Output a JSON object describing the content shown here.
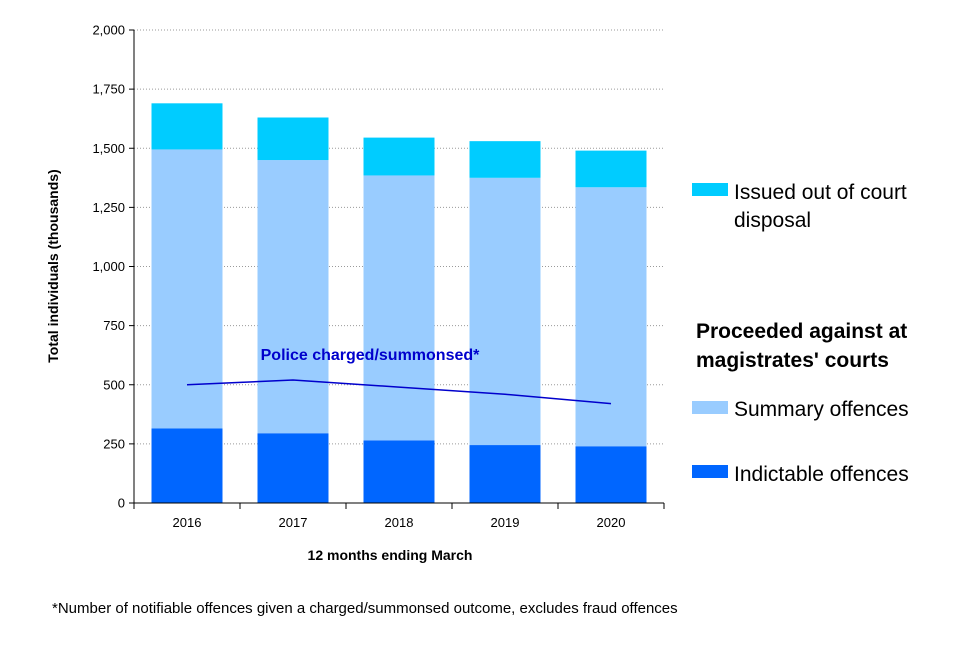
{
  "chart_data": {
    "type": "bar",
    "stacked": true,
    "categories": [
      "2016",
      "2017",
      "2018",
      "2019",
      "2020"
    ],
    "series": [
      {
        "name": "Indictable offences",
        "color": "#0066ff",
        "values": [
          315,
          295,
          265,
          245,
          240
        ]
      },
      {
        "name": "Summary offences",
        "color": "#99ccff",
        "values": [
          1180,
          1155,
          1120,
          1130,
          1095
        ]
      },
      {
        "name": "Issued out of court disposal",
        "color": "#00ccff",
        "values": [
          195,
          180,
          160,
          155,
          155
        ]
      }
    ],
    "line_series": {
      "name": "Police charged/summonsed*",
      "color": "#0000cc",
      "values": [
        500,
        520,
        490,
        460,
        420
      ]
    },
    "xlabel": "12 months ending March",
    "ylabel": "Total individuals (thousands)",
    "ylim": [
      0,
      2000
    ],
    "yticks": [
      0,
      250,
      500,
      750,
      1000,
      1250,
      1500,
      1750,
      2000
    ],
    "ytick_labels": [
      "0",
      "250",
      "500",
      "750",
      "1,000",
      "1,250",
      "1,500",
      "1,750",
      "2,000"
    ],
    "grid": true,
    "legend_placement": "right",
    "legend": {
      "item_out_of_court_line1": "Issued out of court",
      "item_out_of_court_line2": "disposal",
      "group_title_line1": "Proceeded against at",
      "group_title_line2": "magistrates' courts",
      "item_summary": "Summary offences",
      "item_indictable": "Indictable offences"
    },
    "footnote": "*Number of notifiable offences given a charged/summonsed outcome, excludes fraud offences"
  }
}
